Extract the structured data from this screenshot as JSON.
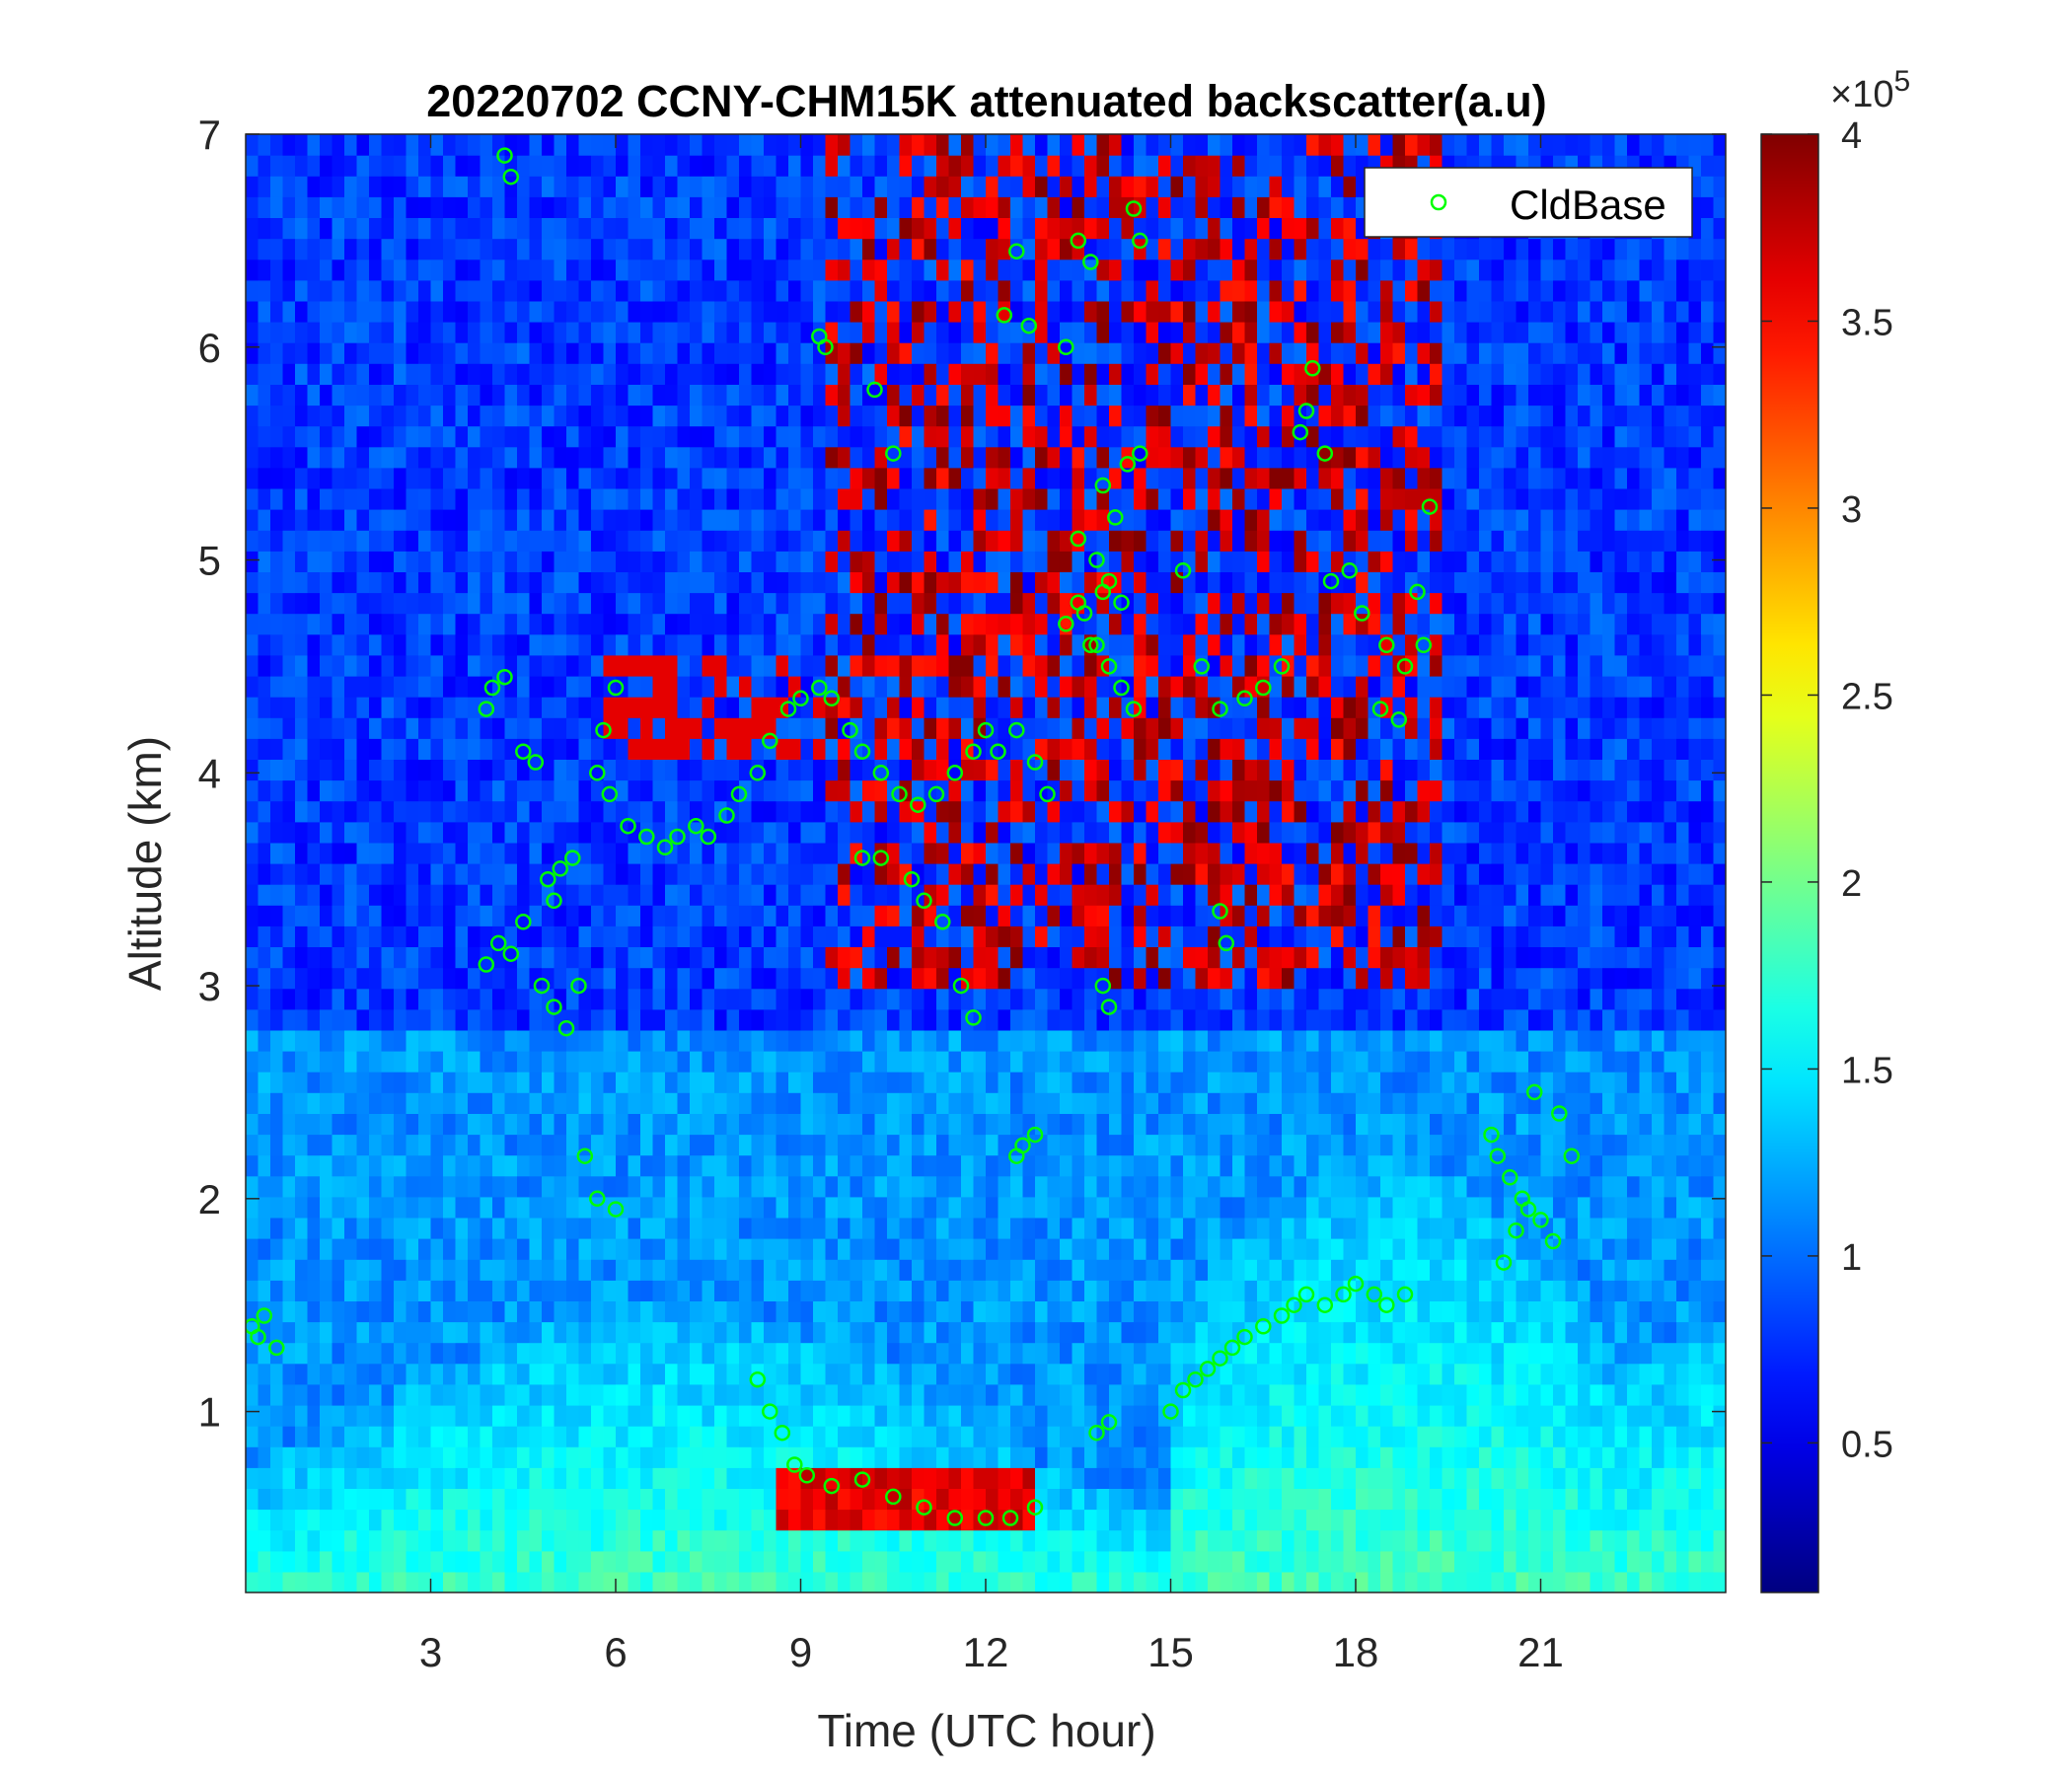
{
  "chart_data": {
    "type": "heatmap",
    "title": "20220702 CCNY-CHM15K attenuated backscatter(a.u)",
    "xlabel": "Time (UTC hour)",
    "ylabel": "Altitude (km)",
    "xlim": [
      0,
      24
    ],
    "ylim": [
      0.15,
      7
    ],
    "x_ticks": [
      3,
      6,
      9,
      12,
      15,
      18,
      21
    ],
    "x_tick_labels": [
      "3",
      "6",
      "9",
      "12",
      "15",
      "18",
      "21"
    ],
    "y_ticks": [
      1,
      2,
      3,
      4,
      5,
      6,
      7
    ],
    "y_tick_labels": [
      "1",
      "2",
      "3",
      "4",
      "5",
      "6",
      "7"
    ],
    "colorbar": {
      "colormap": "jet",
      "clim": [
        0.1,
        4
      ],
      "ticks": [
        0.5,
        1,
        1.5,
        2,
        2.5,
        3,
        3.5,
        4
      ],
      "tick_labels": [
        "0.5",
        "1",
        "1.5",
        "2",
        "2.5",
        "3",
        "3.5",
        "4"
      ],
      "exponent_multiplier": "×10",
      "exponent_power": "5"
    },
    "legend": {
      "position": "top-right",
      "entries": [
        "CldBase"
      ]
    },
    "marker_color": "#00ff00",
    "series": [
      {
        "name": "CldBase",
        "marker": "circle",
        "x": [
          0.1,
          0.2,
          0.3,
          0.5,
          4.2,
          4.3,
          3.9,
          4.0,
          4.2,
          3.9,
          4.1,
          4.3,
          4.5,
          4.8,
          4.5,
          4.7,
          5.0,
          4.9,
          5.1,
          5.3,
          5.0,
          5.2,
          5.4,
          5.5,
          5.7,
          6.0,
          5.8,
          6.0,
          5.7,
          5.9,
          6.2,
          6.5,
          6.8,
          7.0,
          7.3,
          7.5,
          7.8,
          8.0,
          8.3,
          8.5,
          8.8,
          9.0,
          9.3,
          9.5,
          9.8,
          10.0,
          10.3,
          10.6,
          10.9,
          11.2,
          11.5,
          11.8,
          12.0,
          9.3,
          9.4,
          10.2,
          10.5,
          10.0,
          10.3,
          10.8,
          11.0,
          11.3,
          11.6,
          11.8,
          12.2,
          12.5,
          12.8,
          13.0,
          12.3,
          12.5,
          12.7,
          13.3,
          13.5,
          13.7,
          13.9,
          14.1,
          14.3,
          14.5,
          13.5,
          13.8,
          14.0,
          14.2,
          14.4,
          14.5,
          13.3,
          13.6,
          13.8,
          14.0,
          14.2,
          14.4,
          13.5,
          13.7,
          13.9,
          12.8,
          12.6,
          12.5,
          13.9,
          14.0,
          8.3,
          8.5,
          8.7,
          8.9,
          9.1,
          9.5,
          10.0,
          10.5,
          11.0,
          11.5,
          12.0,
          12.4,
          12.8,
          15.2,
          15.4,
          15.6,
          15.8,
          16.0,
          16.2,
          16.5,
          16.8,
          17.0,
          17.2,
          17.5,
          17.8,
          18.0,
          18.3,
          18.5,
          18.8,
          14.0,
          13.8,
          15.0,
          17.3,
          17.5,
          17.1,
          17.2,
          17.6,
          17.9,
          18.1,
          18.5,
          18.8,
          19.0,
          19.2,
          18.4,
          18.7,
          19.1,
          15.2,
          15.5,
          15.8,
          16.2,
          16.5,
          16.8,
          15.8,
          15.9,
          20.3,
          20.5,
          20.7,
          21.0,
          21.2,
          20.4,
          20.6,
          20.8,
          20.2,
          20.9,
          21.3,
          21.5
        ],
        "y": [
          1.4,
          1.35,
          1.45,
          1.3,
          6.9,
          6.8,
          4.3,
          4.4,
          4.45,
          3.1,
          3.2,
          3.15,
          3.3,
          3.0,
          4.1,
          4.05,
          3.4,
          3.5,
          3.55,
          3.6,
          2.9,
          2.8,
          3.0,
          2.2,
          2.0,
          1.95,
          4.2,
          4.4,
          4.0,
          3.9,
          3.75,
          3.7,
          3.65,
          3.7,
          3.75,
          3.7,
          3.8,
          3.9,
          4.0,
          4.15,
          4.3,
          4.35,
          4.4,
          4.35,
          4.2,
          4.1,
          4.0,
          3.9,
          3.85,
          3.9,
          4.0,
          4.1,
          4.2,
          6.05,
          6.0,
          5.8,
          5.5,
          3.6,
          3.6,
          3.5,
          3.4,
          3.3,
          3.0,
          2.85,
          4.1,
          4.2,
          4.05,
          3.9,
          6.15,
          6.45,
          6.1,
          6.0,
          6.5,
          6.4,
          5.35,
          5.2,
          5.45,
          5.5,
          5.1,
          5.0,
          4.9,
          4.8,
          6.65,
          6.5,
          4.7,
          4.75,
          4.6,
          4.5,
          4.4,
          4.3,
          4.8,
          4.6,
          4.85,
          2.3,
          2.25,
          2.2,
          3.0,
          2.9,
          1.15,
          1.0,
          0.9,
          0.75,
          0.7,
          0.65,
          0.68,
          0.6,
          0.55,
          0.5,
          0.5,
          0.5,
          0.55,
          1.1,
          1.15,
          1.2,
          1.25,
          1.3,
          1.35,
          1.4,
          1.45,
          1.5,
          1.55,
          1.5,
          1.55,
          1.6,
          1.55,
          1.5,
          1.55,
          0.95,
          0.9,
          1.0,
          5.9,
          5.5,
          5.6,
          5.7,
          4.9,
          4.95,
          4.75,
          4.6,
          4.5,
          4.85,
          5.25,
          4.3,
          4.25,
          4.6,
          4.95,
          4.5,
          4.3,
          4.35,
          4.4,
          4.5,
          3.35,
          3.2,
          2.2,
          2.1,
          2.0,
          1.9,
          1.8,
          1.7,
          1.85,
          1.95,
          2.3,
          2.5,
          2.4,
          2.2
        ]
      }
    ]
  }
}
